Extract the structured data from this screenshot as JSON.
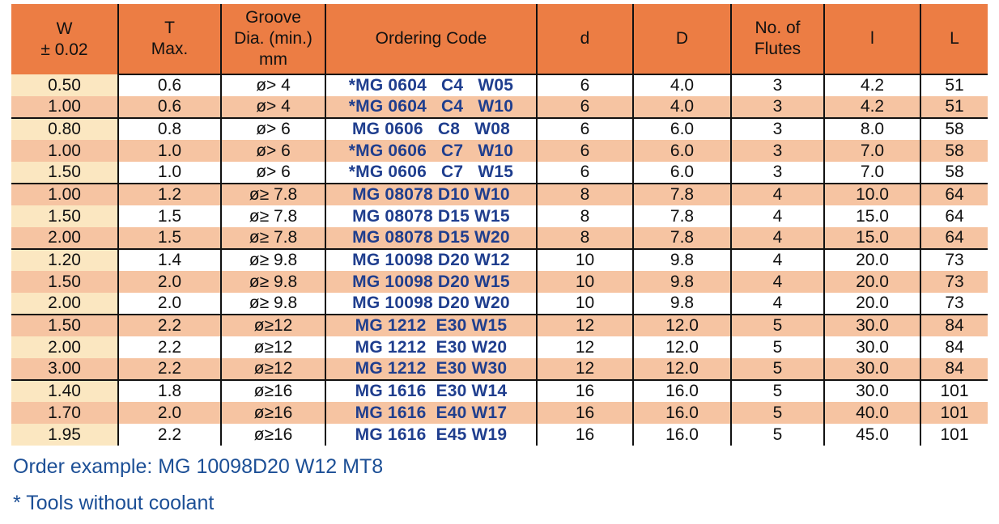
{
  "table": {
    "columns": [
      {
        "id": "w",
        "label": "W\n± 0.02"
      },
      {
        "id": "t",
        "label": "T\nMax."
      },
      {
        "id": "groove",
        "label": "Groove\nDia. (min.)\nmm"
      },
      {
        "id": "code",
        "label": "Ordering Code"
      },
      {
        "id": "d",
        "label": "d"
      },
      {
        "id": "D",
        "label": "D"
      },
      {
        "id": "flutes",
        "label": "No. of\nFlutes"
      },
      {
        "id": "l",
        "label": "l"
      },
      {
        "id": "L",
        "label": "L"
      }
    ],
    "rows": [
      [
        "0.50",
        "0.6",
        "ø> 4",
        "*MG 0604   C4   W05",
        "6",
        "4.0",
        "3",
        "4.2",
        "51"
      ],
      [
        "1.00",
        "0.6",
        "ø> 4",
        "*MG 0604   C4   W10",
        "6",
        "4.0",
        "3",
        "4.2",
        "51"
      ],
      [
        "0.80",
        "0.8",
        "ø> 6",
        "MG 0606   C8   W08",
        "6",
        "6.0",
        "3",
        "8.0",
        "58"
      ],
      [
        "1.00",
        "1.0",
        "ø> 6",
        "*MG 0606   C7   W10",
        "6",
        "6.0",
        "3",
        "7.0",
        "58"
      ],
      [
        "1.50",
        "1.0",
        "ø> 6",
        "*MG 0606   C7   W15",
        "6",
        "6.0",
        "3",
        "7.0",
        "58"
      ],
      [
        "1.00",
        "1.2",
        "ø≥ 7.8",
        "MG 08078 D10 W10",
        "8",
        "7.8",
        "4",
        "10.0",
        "64"
      ],
      [
        "1.50",
        "1.5",
        "ø≥ 7.8",
        "MG 08078 D15 W15",
        "8",
        "7.8",
        "4",
        "15.0",
        "64"
      ],
      [
        "2.00",
        "1.5",
        "ø≥ 7.8",
        "MG 08078 D15 W20",
        "8",
        "7.8",
        "4",
        "15.0",
        "64"
      ],
      [
        "1.20",
        "1.4",
        "ø≥ 9.8",
        "MG 10098 D20 W12",
        "10",
        "9.8",
        "4",
        "20.0",
        "73"
      ],
      [
        "1.50",
        "2.0",
        "ø≥ 9.8",
        "MG 10098 D20 W15",
        "10",
        "9.8",
        "4",
        "20.0",
        "73"
      ],
      [
        "2.00",
        "2.0",
        "ø≥ 9.8",
        "MG 10098 D20 W20",
        "10",
        "9.8",
        "4",
        "20.0",
        "73"
      ],
      [
        "1.50",
        "2.2",
        "ø≥12",
        "MG 1212  E30 W15",
        "12",
        "12.0",
        "5",
        "30.0",
        "84"
      ],
      [
        "2.00",
        "2.2",
        "ø≥12",
        "MG 1212  E30 W20",
        "12",
        "12.0",
        "5",
        "30.0",
        "84"
      ],
      [
        "3.00",
        "2.2",
        "ø≥12",
        "MG 1212  E30 W30",
        "12",
        "12.0",
        "5",
        "30.0",
        "84"
      ],
      [
        "1.40",
        "1.8",
        "ø≥16",
        "MG 1616  E30 W14",
        "16",
        "16.0",
        "5",
        "30.0",
        "101"
      ],
      [
        "1.70",
        "2.0",
        "ø≥16",
        "MG 1616  E40 W17",
        "16",
        "16.0",
        "5",
        "40.0",
        "101"
      ],
      [
        "1.95",
        "2.2",
        "ø≥16",
        "MG 1616  E45 W19",
        "16",
        "16.0",
        "5",
        "45.0",
        "101"
      ]
    ]
  },
  "notes": {
    "order_example": "Order example: MG 10098D20 W12 MT8",
    "coolant_note": "* Tools without coolant"
  },
  "colors": {
    "header_bg": "#EC7D44",
    "row_alt_bg": "#F6C4A2",
    "row_light_bg": "#FFFFFF",
    "w_col_light_bg": "#FBE7C1",
    "code_text": "#1F3E8E",
    "note_text": "#1C4F96",
    "grid_line": "#111111"
  }
}
